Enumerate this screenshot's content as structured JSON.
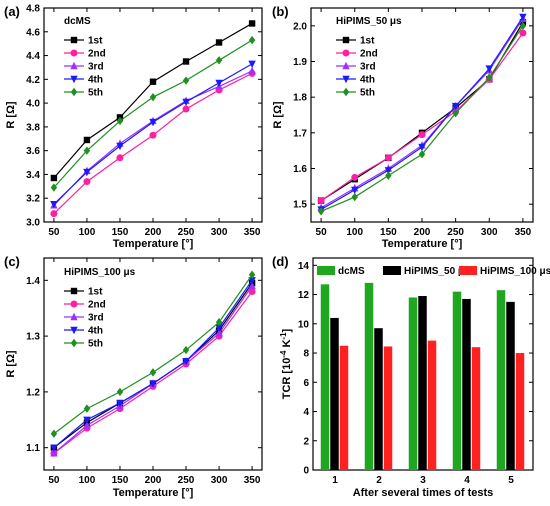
{
  "colors": {
    "s1": "#000000",
    "s2": "#ff1fa3",
    "s3": "#9b30ff",
    "s4": "#1a1aff",
    "s5": "#1f8f1f",
    "dcms_bar": "#1fa81f",
    "hipims50_bar": "#000000",
    "hipims100_bar": "#ff2020"
  },
  "chart_data": [
    {
      "id": "a",
      "type": "line",
      "panel_label": "(a)",
      "title": "dcMS",
      "xlabel": "Temperature [°]",
      "ylabel": "R [Ω]",
      "x": [
        50,
        100,
        150,
        200,
        250,
        300,
        350
      ],
      "xlim": [
        35,
        365
      ],
      "xticks": [
        50,
        100,
        150,
        200,
        250,
        300,
        350
      ],
      "ylim": [
        3.0,
        4.8
      ],
      "yticks": [
        3.0,
        3.2,
        3.4,
        3.6,
        3.8,
        4.0,
        4.2,
        4.4,
        4.6,
        4.8
      ],
      "ytick_labels": [
        "3.0",
        "3.2",
        "3.4",
        "3.6",
        "3.8",
        "4.0",
        "4.2",
        "4.4",
        "4.6",
        "4.8"
      ],
      "legend_position": "top-left",
      "series": [
        {
          "name": "1st",
          "marker": "square",
          "values": [
            3.37,
            3.69,
            3.88,
            4.18,
            4.35,
            4.51,
            4.67
          ]
        },
        {
          "name": "2nd",
          "marker": "circle",
          "values": [
            3.07,
            3.34,
            3.54,
            3.73,
            3.95,
            4.11,
            4.25
          ]
        },
        {
          "name": "3rd",
          "marker": "triangle-up",
          "values": [
            3.14,
            3.43,
            3.66,
            3.85,
            4.02,
            4.14,
            4.27
          ]
        },
        {
          "name": "4th",
          "marker": "triangle-down",
          "values": [
            3.15,
            3.42,
            3.64,
            3.84,
            4.01,
            4.17,
            4.33
          ]
        },
        {
          "name": "5th",
          "marker": "diamond",
          "values": [
            3.29,
            3.6,
            3.85,
            4.05,
            4.19,
            4.36,
            4.53
          ]
        }
      ]
    },
    {
      "id": "b",
      "type": "line",
      "panel_label": "(b)",
      "title": "HiPIMS_50 μs",
      "xlabel": "Temperature [°]",
      "ylabel": "R [Ω]",
      "x": [
        50,
        100,
        150,
        200,
        250,
        300,
        350
      ],
      "xlim": [
        35,
        365
      ],
      "xticks": [
        50,
        100,
        150,
        200,
        250,
        300,
        350
      ],
      "ylim": [
        1.45,
        2.05
      ],
      "yticks": [
        1.5,
        1.6,
        1.7,
        1.8,
        1.9,
        2.0
      ],
      "ytick_labels": [
        "1.5",
        "1.6",
        "1.7",
        "1.8",
        "1.9",
        "2.0"
      ],
      "legend_position": "top-left",
      "series": [
        {
          "name": "1st",
          "marker": "square",
          "values": [
            1.51,
            1.57,
            1.63,
            1.7,
            1.77,
            1.85,
            2.01
          ]
        },
        {
          "name": "2nd",
          "marker": "circle",
          "values": [
            1.51,
            1.575,
            1.63,
            1.695,
            1.76,
            1.85,
            1.98
          ]
        },
        {
          "name": "3rd",
          "marker": "triangle-up",
          "values": [
            1.49,
            1.545,
            1.6,
            1.665,
            1.775,
            1.875,
            2.02
          ]
        },
        {
          "name": "4th",
          "marker": "triangle-down",
          "values": [
            1.485,
            1.54,
            1.595,
            1.66,
            1.775,
            1.88,
            2.025
          ]
        },
        {
          "name": "5th",
          "marker": "diamond",
          "values": [
            1.48,
            1.52,
            1.58,
            1.64,
            1.755,
            1.855,
            2.0
          ]
        }
      ]
    },
    {
      "id": "c",
      "type": "line",
      "panel_label": "(c)",
      "title": "HiPIMS_100 μs",
      "xlabel": "Temperature [°]",
      "ylabel": "R [Ω]",
      "x": [
        50,
        100,
        150,
        200,
        250,
        300,
        350
      ],
      "xlim": [
        35,
        365
      ],
      "xticks": [
        50,
        100,
        150,
        200,
        250,
        300,
        350
      ],
      "ylim": [
        1.06,
        1.44
      ],
      "yticks": [
        1.1,
        1.2,
        1.3,
        1.4
      ],
      "ytick_labels": [
        "1.1",
        "1.2",
        "1.3",
        "1.4"
      ],
      "legend_position": "top-left",
      "series": [
        {
          "name": "1st",
          "marker": "square",
          "values": [
            1.1,
            1.145,
            1.18,
            1.215,
            1.255,
            1.31,
            1.395
          ]
        },
        {
          "name": "2nd",
          "marker": "circle",
          "values": [
            1.09,
            1.135,
            1.17,
            1.21,
            1.25,
            1.3,
            1.38
          ]
        },
        {
          "name": "3rd",
          "marker": "triangle-up",
          "values": [
            1.09,
            1.14,
            1.175,
            1.215,
            1.255,
            1.305,
            1.39
          ]
        },
        {
          "name": "4th",
          "marker": "triangle-down",
          "values": [
            1.1,
            1.15,
            1.18,
            1.215,
            1.255,
            1.315,
            1.4
          ]
        },
        {
          "name": "5th",
          "marker": "diamond",
          "values": [
            1.125,
            1.17,
            1.2,
            1.235,
            1.275,
            1.325,
            1.41
          ]
        }
      ]
    },
    {
      "id": "d",
      "type": "bar",
      "panel_label": "(d)",
      "xlabel": "After several times of tests",
      "ylabel_main": "TCR [10",
      "ylabel_sup1": "-4",
      "ylabel_mid": " K",
      "ylabel_sup2": "-1",
      "ylabel_end": "]",
      "categories": [
        "1",
        "2",
        "3",
        "4",
        "5"
      ],
      "xlim": [
        0.5,
        5.5
      ],
      "ylim": [
        0,
        14.5
      ],
      "yticks": [
        0,
        2,
        4,
        6,
        8,
        10,
        12,
        14
      ],
      "ytick_labels": [
        "0",
        "2",
        "4",
        "6",
        "8",
        "10",
        "12",
        "14"
      ],
      "legend_position": "top",
      "series": [
        {
          "name": "dcMS",
          "color_key": "dcms_bar",
          "values": [
            12.7,
            12.8,
            11.8,
            12.2,
            12.3
          ]
        },
        {
          "name": "HiPIMS_50 μs",
          "color_key": "hipims50_bar",
          "values": [
            10.4,
            9.7,
            11.9,
            11.7,
            11.5
          ]
        },
        {
          "name": "HiPIMS_100 μs",
          "color_key": "hipims100_bar",
          "values": [
            8.5,
            8.45,
            8.85,
            8.4,
            8.0
          ]
        }
      ]
    }
  ]
}
